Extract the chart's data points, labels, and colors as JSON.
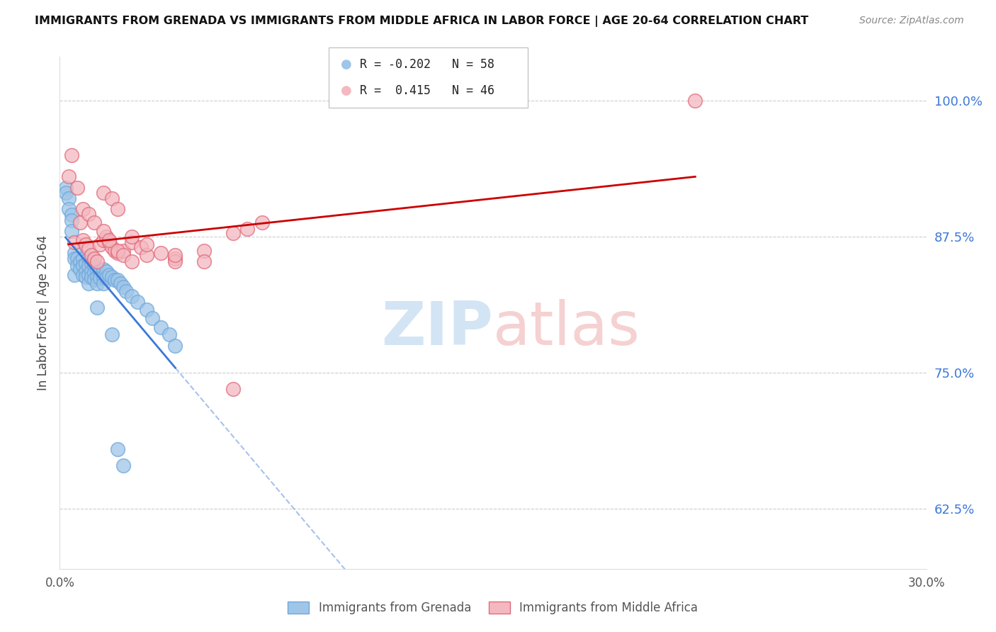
{
  "title": "IMMIGRANTS FROM GRENADA VS IMMIGRANTS FROM MIDDLE AFRICA IN LABOR FORCE | AGE 20-64 CORRELATION CHART",
  "source": "Source: ZipAtlas.com",
  "ylabel": "In Labor Force | Age 20-64",
  "xlim": [
    0.0,
    0.3
  ],
  "ylim": [
    0.57,
    1.04
  ],
  "xticks": [
    0.0,
    0.05,
    0.1,
    0.15,
    0.2,
    0.25,
    0.3
  ],
  "xticklabels": [
    "0.0%",
    "",
    "",
    "",
    "",
    "",
    "30.0%"
  ],
  "yticks_right": [
    0.625,
    0.75,
    0.875,
    1.0
  ],
  "yticklabels_right": [
    "62.5%",
    "75.0%",
    "87.5%",
    "100.0%"
  ],
  "legend_r_blue": "-0.202",
  "legend_n_blue": "58",
  "legend_r_pink": "0.415",
  "legend_n_pink": "46",
  "blue_color": "#9fc5e8",
  "pink_color": "#f4b8c1",
  "blue_edge_color": "#6fa8dc",
  "pink_edge_color": "#e06c7a",
  "blue_line_color": "#3c78d8",
  "pink_line_color": "#cc0000",
  "grenada_x": [
    0.002,
    0.002,
    0.003,
    0.003,
    0.004,
    0.004,
    0.004,
    0.005,
    0.005,
    0.005,
    0.006,
    0.006,
    0.007,
    0.007,
    0.008,
    0.008,
    0.008,
    0.009,
    0.009,
    0.009,
    0.01,
    0.01,
    0.01,
    0.01,
    0.011,
    0.011,
    0.011,
    0.012,
    0.012,
    0.012,
    0.013,
    0.013,
    0.013,
    0.014,
    0.014,
    0.015,
    0.015,
    0.015,
    0.016,
    0.016,
    0.017,
    0.018,
    0.019,
    0.02,
    0.021,
    0.022,
    0.023,
    0.025,
    0.027,
    0.03,
    0.032,
    0.035,
    0.038,
    0.04,
    0.013,
    0.018,
    0.02,
    0.022
  ],
  "grenada_y": [
    0.92,
    0.915,
    0.91,
    0.9,
    0.895,
    0.89,
    0.88,
    0.86,
    0.855,
    0.84,
    0.855,
    0.848,
    0.852,
    0.845,
    0.855,
    0.848,
    0.84,
    0.85,
    0.843,
    0.838,
    0.855,
    0.848,
    0.84,
    0.832,
    0.85,
    0.843,
    0.838,
    0.848,
    0.842,
    0.836,
    0.845,
    0.838,
    0.832,
    0.843,
    0.837,
    0.845,
    0.838,
    0.832,
    0.843,
    0.837,
    0.84,
    0.838,
    0.835,
    0.835,
    0.832,
    0.829,
    0.825,
    0.82,
    0.815,
    0.808,
    0.8,
    0.792,
    0.785,
    0.775,
    0.81,
    0.785,
    0.68,
    0.665
  ],
  "africa_x": [
    0.003,
    0.004,
    0.005,
    0.006,
    0.007,
    0.008,
    0.009,
    0.01,
    0.011,
    0.012,
    0.013,
    0.014,
    0.015,
    0.016,
    0.017,
    0.018,
    0.019,
    0.02,
    0.022,
    0.025,
    0.028,
    0.035,
    0.04,
    0.05,
    0.06,
    0.065,
    0.07,
    0.008,
    0.01,
    0.012,
    0.015,
    0.017,
    0.02,
    0.022,
    0.025,
    0.03,
    0.04,
    0.015,
    0.018,
    0.02,
    0.025,
    0.03,
    0.04,
    0.05,
    0.06,
    0.22
  ],
  "africa_y": [
    0.93,
    0.95,
    0.87,
    0.92,
    0.888,
    0.872,
    0.868,
    0.864,
    0.858,
    0.855,
    0.852,
    0.868,
    0.872,
    0.875,
    0.87,
    0.865,
    0.862,
    0.86,
    0.862,
    0.87,
    0.865,
    0.86,
    0.855,
    0.862,
    0.878,
    0.882,
    0.888,
    0.9,
    0.896,
    0.888,
    0.88,
    0.872,
    0.862,
    0.858,
    0.852,
    0.858,
    0.852,
    0.915,
    0.91,
    0.9,
    0.875,
    0.868,
    0.858,
    0.852,
    0.735,
    1.0
  ],
  "watermark_zip_color": "#cfe2f3",
  "watermark_atlas_color": "#f4cccc"
}
